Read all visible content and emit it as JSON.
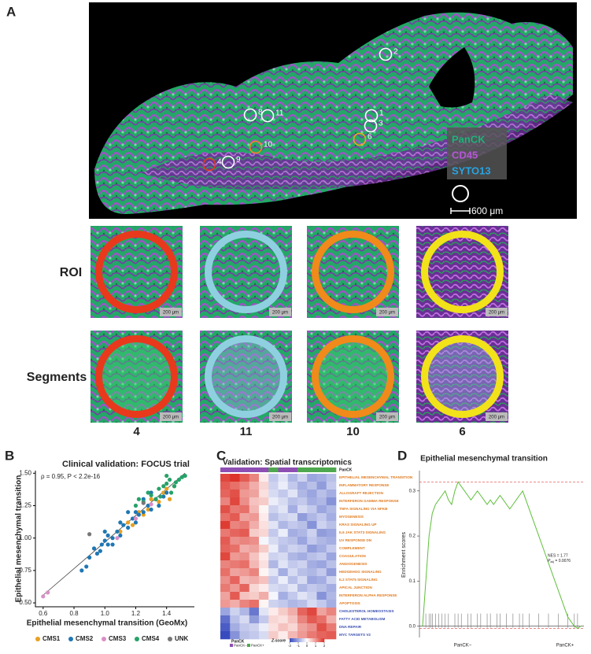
{
  "panel_a": {
    "label": "A",
    "rois": [
      {
        "label": "2",
        "color": "#ffffff"
      },
      {
        "label": "1",
        "color": "#ffffff"
      },
      {
        "label": "3",
        "color": "#ffffff"
      },
      {
        "label": "6",
        "color": "#f2a51a"
      },
      {
        "label": "8",
        "color": "#ffffff"
      },
      {
        "label": "11",
        "color": "#ffffff"
      },
      {
        "label": "10",
        "color": "#f08a1a"
      },
      {
        "label": "4",
        "color": "#e8391c"
      },
      {
        "label": "9",
        "color": "#ffffff"
      }
    ],
    "channels": [
      {
        "name": "PanCK",
        "color": "#1db37a"
      },
      {
        "name": "CD45",
        "color": "#b557d4"
      },
      {
        "name": "SYTO13",
        "color": "#29a3e0"
      }
    ],
    "scale": "600 μm",
    "row_labels": [
      "ROI",
      "Segments"
    ],
    "tile_scale": "200 μm",
    "columns": [
      {
        "label": "4",
        "color": "#e8391c"
      },
      {
        "label": "11",
        "color": "#8fd0e0"
      },
      {
        "label": "10",
        "color": "#f08a1a"
      },
      {
        "label": "6",
        "color": "#f2e21a"
      }
    ]
  },
  "panel_b": {
    "label": "B",
    "chart_data": {
      "type": "scatter",
      "title": "Clinical validation: FOCUS trial",
      "annotation": "ρ = 0.95, P < 2.2e-16",
      "x_label": "Epithelial mesenchymal transition (GeoMx)",
      "y_label": "Epithelial mesenchymal transition",
      "xlim": [
        0.55,
        1.58
      ],
      "ylim": [
        0.47,
        1.52
      ],
      "xticks": [
        0.6,
        0.8,
        {
          "value": 1.0,
          "label": "1.0"
        },
        1.2,
        1.4
      ],
      "yticks": [
        {
          "value": 0.5,
          "label": "0.50"
        },
        0.75,
        {
          "value": 1.0,
          "label": "1.00"
        },
        1.25,
        {
          "value": 1.5,
          "label": "1.50"
        }
      ],
      "series": [
        {
          "name": "CMS1",
          "color": "#e8a020",
          "x": [
            1.1,
            1.18,
            1.22,
            1.28,
            1.3,
            1.35,
            1.38,
            1.42,
            1.45,
            1.25,
            1.15,
            1.4
          ],
          "values": [
            1.05,
            1.1,
            1.2,
            1.22,
            1.3,
            1.28,
            1.35,
            1.3,
            1.4,
            1.18,
            1.12,
            1.38
          ]
        },
        {
          "name": "CMS2",
          "color": "#1f77b4",
          "x": [
            0.85,
            0.88,
            0.9,
            0.95,
            0.98,
            1.0,
            1.02,
            1.05,
            1.08,
            1.1,
            1.12,
            1.15,
            1.18,
            1.2,
            1.22,
            1.25,
            1.28,
            1.3,
            1.33,
            1.35,
            1.38,
            1.0,
            1.05,
            1.1,
            1.15,
            0.93,
            1.02,
            1.2,
            1.25,
            1.4,
            1.3,
            0.97
          ],
          "values": [
            0.75,
            0.78,
            0.85,
            0.88,
            0.95,
            0.98,
            0.95,
            1.0,
            1.05,
            1.02,
            1.1,
            1.08,
            1.15,
            1.12,
            1.18,
            1.2,
            1.25,
            1.22,
            1.3,
            1.25,
            1.32,
            1.05,
            0.95,
            1.12,
            1.2,
            0.92,
            1.02,
            1.2,
            1.3,
            1.35,
            1.35,
            0.9
          ]
        },
        {
          "name": "CMS3",
          "color": "#d98fc6",
          "x": [
            0.6,
            0.63,
            1.08,
            1.2,
            1.3
          ],
          "values": [
            0.55,
            0.58,
            1.0,
            1.15,
            1.26
          ]
        },
        {
          "name": "CMS4",
          "color": "#26a269",
          "x": [
            1.2,
            1.25,
            1.3,
            1.35,
            1.38,
            1.4,
            1.42,
            1.45,
            1.48,
            1.5,
            1.52,
            1.28,
            1.33,
            1.43,
            1.46,
            1.36,
            1.22,
            1.4
          ],
          "values": [
            1.25,
            1.28,
            1.33,
            1.38,
            1.4,
            1.42,
            1.45,
            1.4,
            1.45,
            1.47,
            1.48,
            1.35,
            1.3,
            1.35,
            1.43,
            1.32,
            1.3,
            1.48
          ]
        },
        {
          "name": "UNK",
          "color": "#777777",
          "x": [
            0.9,
            1.25
          ],
          "values": [
            1.03,
            1.27
          ]
        }
      ]
    }
  },
  "panel_c": {
    "label": "C",
    "chart_data": {
      "type": "heatmap",
      "title": "Validation: Spatial transcriptomics",
      "annotation_title": "PanCK",
      "groups": [
        {
          "name": "PanCK−",
          "color": "#8e4fb3"
        },
        {
          "name": "PanCK+",
          "color": "#4fa84f"
        }
      ],
      "column_groups": [
        0,
        0,
        0,
        0,
        0,
        1,
        0,
        0,
        1,
        1,
        1,
        1
      ],
      "colorbar_title": "Z-score",
      "zlim": [
        -2,
        2
      ],
      "zticks": [
        -2,
        -1,
        0,
        1,
        2
      ],
      "rows": [
        {
          "name": "EPITHELIAL MESENCHYMAL TRANSITION",
          "color": "#e07b20",
          "values": [
            1.8,
            2.0,
            1.6,
            1.2,
            0.2,
            -0.6,
            -0.3,
            -0.8,
            -0.5,
            -1.0,
            -0.9,
            -0.7
          ]
        },
        {
          "name": "INFLAMMATORY RESPONSE",
          "color": "#e07b20",
          "values": [
            1.6,
            1.4,
            1.2,
            0.8,
            0.4,
            -0.5,
            -0.2,
            -0.6,
            -0.9,
            -0.7,
            -1.1,
            -0.6
          ]
        },
        {
          "name": "ALLOGRAFT REJECTION",
          "color": "#e07b20",
          "values": [
            1.5,
            1.7,
            1.0,
            0.9,
            0.3,
            -0.4,
            -0.6,
            -0.3,
            -0.8,
            -1.0,
            -0.7,
            -0.9
          ]
        },
        {
          "name": "INTERFERON GAMMA RESPONSE",
          "color": "#e07b20",
          "values": [
            1.2,
            1.8,
            1.1,
            0.6,
            0.5,
            -0.2,
            -0.4,
            -0.7,
            -0.6,
            -0.9,
            -0.8,
            -1.2
          ]
        },
        {
          "name": "TNFA SIGNALING VIA NFKB",
          "color": "#e07b20",
          "values": [
            1.7,
            1.3,
            1.4,
            0.7,
            0.1,
            -0.5,
            -0.3,
            -0.9,
            -0.4,
            -0.6,
            -1.0,
            -0.8
          ]
        },
        {
          "name": "MYOGENESIS",
          "color": "#e07b20",
          "values": [
            1.4,
            1.6,
            0.9,
            1.0,
            0.2,
            -0.7,
            -0.5,
            -0.4,
            -1.1,
            -0.8,
            -0.6,
            -0.9
          ]
        },
        {
          "name": "KRAS SIGNALING UP",
          "color": "#e07b20",
          "values": [
            1.9,
            1.2,
            1.3,
            0.8,
            0.3,
            -0.3,
            -0.8,
            -0.6,
            -0.7,
            -1.2,
            -0.5,
            -0.7
          ]
        },
        {
          "name": "IL6 JAK STAT3 SIGNALING",
          "color": "#e07b20",
          "values": [
            1.3,
            1.5,
            1.6,
            0.5,
            0.4,
            -0.6,
            -0.2,
            -0.9,
            -0.8,
            -0.5,
            -1.1,
            -1.0
          ]
        },
        {
          "name": "UV RESPONSE DN",
          "color": "#e07b20",
          "values": [
            1.6,
            1.1,
            1.2,
            1.1,
            -0.1,
            -0.4,
            -0.6,
            -0.7,
            -1.0,
            -0.6,
            -0.8,
            -0.9
          ]
        },
        {
          "name": "COMPLEMENT",
          "color": "#e07b20",
          "values": [
            1.5,
            1.4,
            0.8,
            0.9,
            0.5,
            -0.2,
            -0.7,
            -0.5,
            -0.6,
            -1.1,
            -0.9,
            -0.6
          ]
        },
        {
          "name": "COAGULATION",
          "color": "#e07b20",
          "values": [
            1.8,
            1.0,
            1.1,
            0.6,
            0.2,
            -0.5,
            -0.4,
            -0.8,
            -0.9,
            -0.7,
            -0.6,
            -1.0
          ]
        },
        {
          "name": "ANGIOGENESIS",
          "color": "#e07b20",
          "values": [
            1.2,
            1.3,
            1.4,
            0.7,
            0.3,
            -0.8,
            -0.3,
            -0.6,
            -0.5,
            -0.9,
            -1.0,
            -0.7
          ]
        },
        {
          "name": "HEDGEHOG SIGNALING",
          "color": "#e07b20",
          "values": [
            1.4,
            0.9,
            1.0,
            1.2,
            0.1,
            -0.3,
            -0.9,
            -0.4,
            -0.7,
            -0.8,
            -0.6,
            -1.1
          ]
        },
        {
          "name": "IL2 STAT5 SIGNALING",
          "color": "#e07b20",
          "values": [
            1.1,
            1.5,
            0.7,
            0.8,
            0.6,
            -0.6,
            -0.2,
            -0.7,
            -0.4,
            -1.0,
            -0.9,
            -0.5
          ]
        },
        {
          "name": "APICAL JUNCTION",
          "color": "#e07b20",
          "values": [
            1.3,
            1.0,
            1.5,
            0.4,
            0.2,
            -0.4,
            -0.5,
            -0.3,
            -0.8,
            -0.6,
            -0.7,
            -0.9
          ]
        },
        {
          "name": "INTERFERON ALPHA RESPONSE",
          "color": "#e07b20",
          "values": [
            0.9,
            1.6,
            0.6,
            0.5,
            0.8,
            -0.1,
            -0.9,
            -0.6,
            -0.3,
            -0.5,
            -1.2,
            -0.8
          ]
        },
        {
          "name": "APOPTOSIS",
          "color": "#e07b20",
          "values": [
            1.0,
            0.8,
            1.2,
            1.4,
            0.1,
            -0.5,
            -0.6,
            -0.8,
            -0.7,
            -0.4,
            -0.6,
            -0.9
          ]
        },
        {
          "name": "CHOLESTEROL HOMEOSTASIS",
          "color": "#3a4fb0",
          "values": [
            -1.0,
            -0.5,
            -0.8,
            -1.5,
            -0.3,
            0.2,
            0.5,
            0.8,
            1.5,
            1.8,
            0.9,
            1.2
          ]
        },
        {
          "name": "FATTY ACID METABOLISM",
          "color": "#3a4fb0",
          "values": [
            -1.6,
            -0.7,
            -0.4,
            -1.1,
            -0.6,
            0.4,
            0.3,
            0.6,
            1.2,
            1.6,
            1.4,
            0.8
          ]
        },
        {
          "name": "DNA REPAIR",
          "color": "#3a4fb0",
          "values": [
            -1.8,
            -0.9,
            -0.6,
            -0.5,
            -0.2,
            0.3,
            0.6,
            0.4,
            0.9,
            1.1,
            1.7,
            1.3
          ]
        },
        {
          "name": "MYC TARGETS V2",
          "color": "#3a4fb0",
          "values": [
            -2.0,
            -1.2,
            -0.7,
            -0.6,
            -0.4,
            0.5,
            0.2,
            0.7,
            1.0,
            1.3,
            1.5,
            1.6
          ]
        }
      ]
    }
  },
  "panel_d": {
    "label": "D",
    "chart_data": {
      "type": "gsea",
      "title": "Epithelial mesenchymal transition",
      "y_label": "Enrichment scores",
      "annotation": "NES = 1.77",
      "annotation_p": {
        "symbol": "P",
        "subscript": "adj",
        "text": " = 0.0076"
      },
      "x_labels": [
        "PanCK−",
        "PanCK+"
      ],
      "color": "#5fbf3a",
      "ylim": [
        -0.025,
        0.345
      ],
      "yticks": [
        {
          "value": 0.0,
          "label": "0.0"
        },
        0.1,
        0.2,
        0.3
      ],
      "values": [
        0,
        0.1,
        0.2,
        0.25,
        0.27,
        0.28,
        0.29,
        0.3,
        0.28,
        0.27,
        0.3,
        0.32,
        0.31,
        0.3,
        0.29,
        0.28,
        0.29,
        0.3,
        0.29,
        0.28,
        0.27,
        0.28,
        0.27,
        0.28,
        0.29,
        0.28,
        0.27,
        0.26,
        0.27,
        0.28,
        0.29,
        0.3,
        0.28,
        0.26,
        0.24,
        0.22,
        0.2,
        0.18,
        0.16,
        0.14,
        0.12,
        0.1,
        0.08,
        0.06,
        0.04,
        0.02,
        0.01,
        0,
        -0.005,
        0
      ],
      "hits": [
        1,
        2,
        2.5,
        3,
        4,
        5,
        6,
        7,
        8,
        10,
        11,
        12,
        14,
        15,
        17,
        18,
        20,
        21,
        23,
        24,
        26,
        28,
        30,
        31,
        33,
        36,
        39,
        42,
        45,
        47,
        48
      ]
    }
  }
}
